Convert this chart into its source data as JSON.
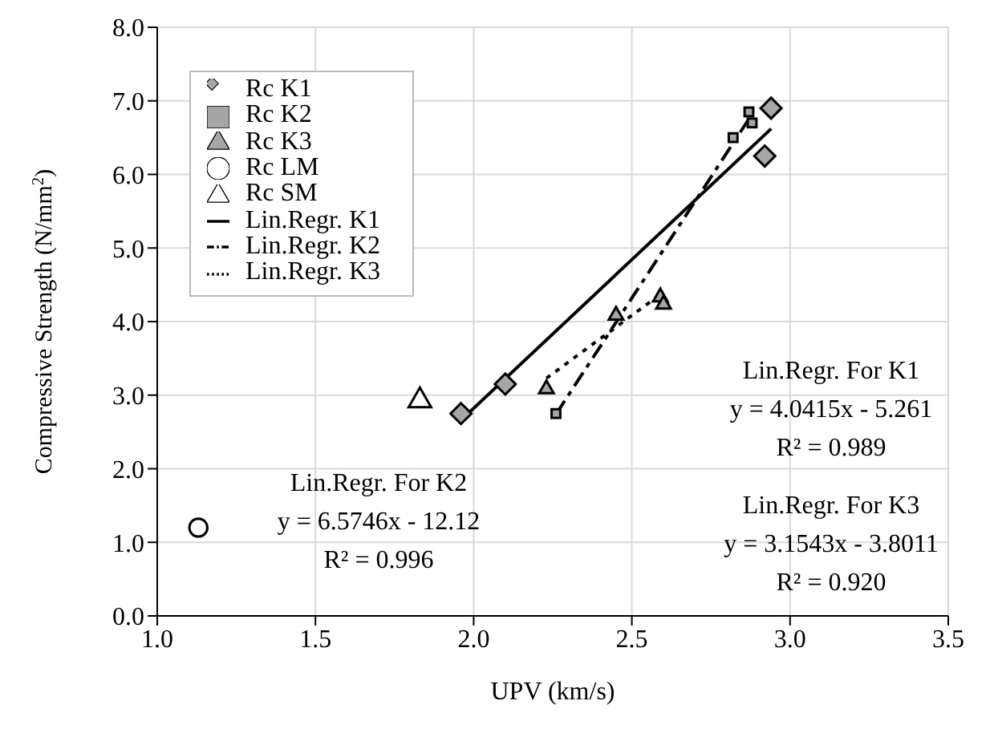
{
  "chart_data": {
    "type": "scatter",
    "xlabel": "UPV (km/s)",
    "ylabel": "Compressive Strength (N/mm$^{2}$)",
    "xlim": [
      1.0,
      3.5
    ],
    "xticks": [
      {
        "value": 1,
        "label": "1.0"
      },
      1.5,
      {
        "value": 2,
        "label": "2.0"
      },
      2.5,
      {
        "value": 3,
        "label": "3.0"
      },
      3.5
    ],
    "ylim": [
      0,
      8
    ],
    "yticks": [
      {
        "value": 0,
        "label": "0.0"
      },
      {
        "value": 1,
        "label": "1.0"
      },
      {
        "value": 2,
        "label": "2.0"
      },
      {
        "value": 3,
        "label": "3.0"
      },
      {
        "value": 4,
        "label": "4.0"
      },
      {
        "value": 5,
        "label": "5.0"
      },
      {
        "value": 6,
        "label": "6.0"
      },
      {
        "value": 7,
        "label": "7.0"
      },
      {
        "value": 8,
        "label": "8.0"
      }
    ],
    "grid": true,
    "legend": "top left",
    "series": [
      {
        "name": "Rc K1",
        "marker": "diamond",
        "color": "#a6a6a6",
        "x": [
          1.96,
          2.1,
          2.94,
          2.92
        ],
        "values": [
          2.75,
          3.15,
          6.9,
          6.25
        ]
      },
      {
        "name": "Rc K2",
        "marker": "square",
        "color": "#a6a6a6",
        "x": [
          2.26,
          2.82,
          2.88,
          2.87
        ],
        "values": [
          2.75,
          6.5,
          6.7,
          6.85
        ]
      },
      {
        "name": "Rc K3",
        "marker": "triangle",
        "color": "#a6a6a6",
        "x": [
          2.23,
          2.45,
          2.59,
          2.6
        ],
        "values": [
          3.1,
          4.1,
          4.35,
          4.25
        ]
      },
      {
        "name": "Rc LM",
        "marker": "circle",
        "color": "#ffffff",
        "x": [
          1.13
        ],
        "values": [
          1.2
        ]
      },
      {
        "name": "Rc SM",
        "marker": "triangle",
        "color": "#ffffff",
        "x": [
          1.83
        ],
        "values": [
          2.95
        ]
      },
      {
        "name": "Lin.Regr. K1",
        "type": "line",
        "line_style": "solid",
        "color": "#000000",
        "x": [
          1.96,
          2.94
        ],
        "values": [
          2.66,
          6.62
        ]
      },
      {
        "name": "Lin.Regr. K2",
        "type": "line",
        "line_style": "dashed",
        "color": "#000000",
        "x": [
          2.26,
          2.88
        ],
        "values": [
          2.74,
          6.82
        ]
      },
      {
        "name": "Lin.Regr. K3",
        "type": "line",
        "line_style": "dotted",
        "color": "#000000",
        "x": [
          2.23,
          2.6
        ],
        "values": [
          3.23,
          4.4
        ]
      }
    ],
    "annotations": [
      "Lin.Regr. For K1\ny = 4.0415x - 5.261\nR² = 0.989",
      "Lin.Regr. For K2\ny = 6.5746x - 12.12\nR² = 0.996",
      "Lin.Regr. For K3\ny = 3.1543x - 3.8011\nR² = 0.920"
    ]
  }
}
